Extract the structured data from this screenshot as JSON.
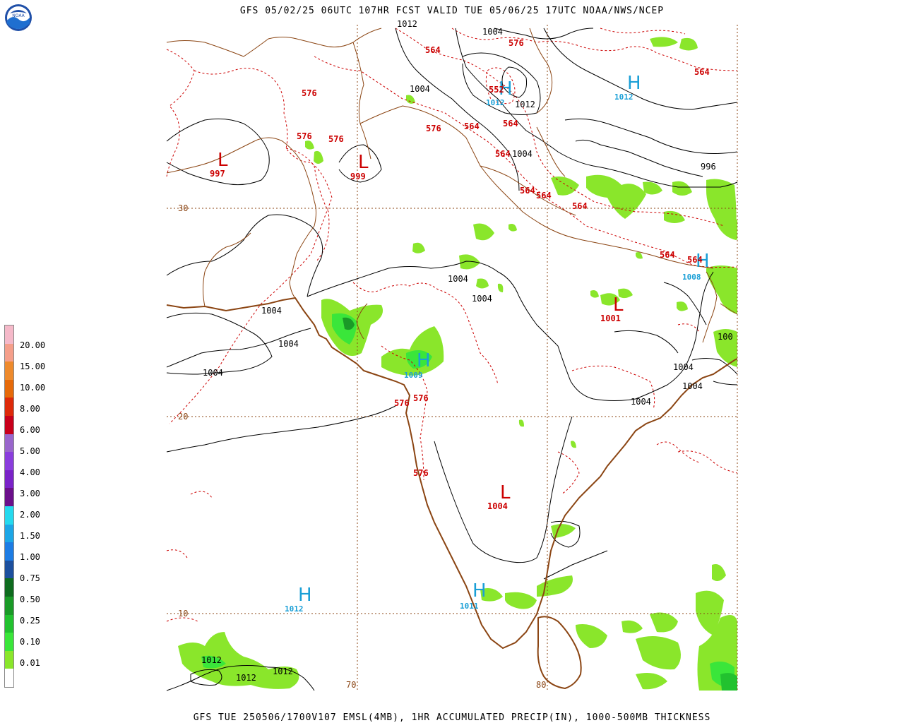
{
  "header": {
    "title": "GFS 05/02/25 06UTC 107HR FCST VALID TUE 05/06/25 17UTC NOAA/NWS/NCEP",
    "footer": "GFS TUE 250506/1700V107 EMSL(4MB), 1HR ACCUMULATED PRECIP(IN), 1000-500MB THICKNESS",
    "logo_text": "NOAA"
  },
  "legend": {
    "labels": [
      "20.00",
      "15.00",
      "10.00",
      "8.00",
      "6.00",
      "5.00",
      "4.00",
      "3.00",
      "2.00",
      "1.50",
      "1.00",
      "0.75",
      "0.50",
      "0.25",
      "0.10",
      "0.01"
    ],
    "colors": [
      "#f5b9c9",
      "#f59f8a",
      "#ee8a2c",
      "#e66a0a",
      "#dd2a0a",
      "#c8001b",
      "#9966cc",
      "#8a3ddd",
      "#7a22c8",
      "#6b0f8a",
      "#25d9ee",
      "#1ca6e6",
      "#1d7ce4",
      "#1c4f9e",
      "#0e6b1e",
      "#1a9a27",
      "#22c22f",
      "#3ae63a",
      "#8ae62b",
      "#ffffff"
    ]
  },
  "gridlines": {
    "lat_labels": [
      "30",
      "20",
      "10"
    ],
    "lon_labels": [
      "70",
      "80"
    ]
  },
  "pressure_centers": [
    {
      "symbol": "L",
      "value": "997",
      "kind": "low"
    },
    {
      "symbol": "L",
      "value": "999",
      "kind": "low"
    },
    {
      "symbol": "H",
      "value": "1012",
      "kind": "high"
    },
    {
      "symbol": "H",
      "value": "1012",
      "kind": "high"
    },
    {
      "symbol": "H",
      "value": "1008",
      "kind": "high"
    },
    {
      "symbol": "L",
      "value": "1001",
      "kind": "low"
    },
    {
      "symbol": "H",
      "value": "1009",
      "kind": "high"
    },
    {
      "symbol": "L",
      "value": "1004",
      "kind": "low"
    },
    {
      "symbol": "H",
      "value": "1012",
      "kind": "high"
    },
    {
      "symbol": "H",
      "value": "1011",
      "kind": "high"
    }
  ],
  "thickness_labels": [
    "576",
    "576",
    "576",
    "576",
    "564",
    "564",
    "576",
    "564",
    "564",
    "564",
    "564",
    "564",
    "564",
    "564",
    "564",
    "576",
    "576",
    "576",
    "552"
  ],
  "isobar_labels": [
    "1012",
    "1004",
    "1004",
    "1012",
    "1004",
    "996",
    "1004",
    "1004",
    "1004",
    "1004",
    "1004",
    "1004",
    "1004",
    "1004",
    "1004",
    "100",
    "1012",
    "1012",
    "1012"
  ]
}
